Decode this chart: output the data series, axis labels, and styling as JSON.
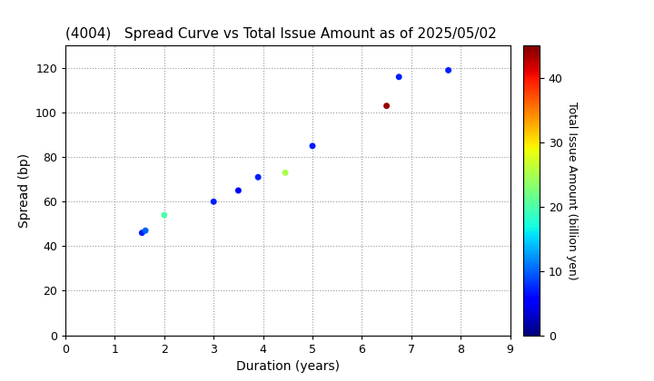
{
  "title": "(4004)   Spread Curve vs Total Issue Amount as of 2025/05/02",
  "xlabel": "Duration (years)",
  "ylabel": "Spread (bp)",
  "colorbar_label": "Total Issue Amount (billion yen)",
  "xlim": [
    0,
    9
  ],
  "ylim": [
    0,
    130
  ],
  "xticks": [
    0,
    1,
    2,
    3,
    4,
    5,
    6,
    7,
    8,
    9
  ],
  "yticks": [
    0,
    20,
    40,
    60,
    80,
    100,
    120
  ],
  "colorbar_ticks": [
    0,
    10,
    20,
    30,
    40
  ],
  "colormap": "jet",
  "vmin": 0,
  "vmax": 45,
  "points": [
    {
      "duration": 1.55,
      "spread": 46,
      "amount": 7
    },
    {
      "duration": 1.62,
      "spread": 47,
      "amount": 10
    },
    {
      "duration": 2.0,
      "spread": 54,
      "amount": 20
    },
    {
      "duration": 3.0,
      "spread": 60,
      "amount": 7
    },
    {
      "duration": 3.5,
      "spread": 65,
      "amount": 5
    },
    {
      "duration": 3.9,
      "spread": 71,
      "amount": 7
    },
    {
      "duration": 4.45,
      "spread": 73,
      "amount": 25
    },
    {
      "duration": 5.0,
      "spread": 85,
      "amount": 7
    },
    {
      "duration": 6.5,
      "spread": 103,
      "amount": 44
    },
    {
      "duration": 6.75,
      "spread": 116,
      "amount": 7
    },
    {
      "duration": 7.75,
      "spread": 119,
      "amount": 7
    }
  ],
  "background_color": "#ffffff",
  "grid_color": "#999999",
  "marker_size": 25,
  "title_fontsize": 11,
  "axis_fontsize": 10,
  "colorbar_fontsize": 9
}
